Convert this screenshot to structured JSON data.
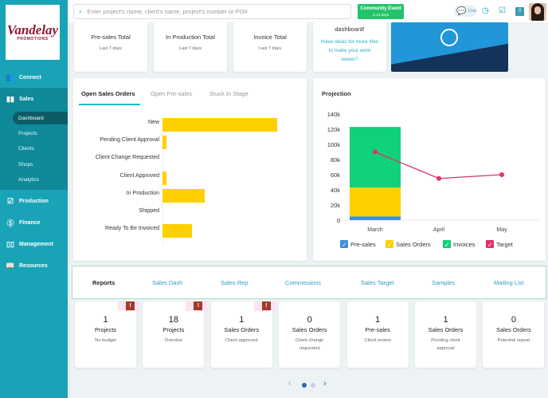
{
  "logo": {
    "line1": "Vandelay",
    "line2": "PROMOTIONS"
  },
  "sidebar": {
    "items": [
      {
        "label": "Connect",
        "icon": "people-icon"
      },
      {
        "label": "Sales",
        "icon": "bar-chart-icon"
      },
      {
        "label": "Production",
        "icon": "checklist-icon"
      },
      {
        "label": "Finance",
        "icon": "dollar-icon"
      },
      {
        "label": "Management",
        "icon": "management-icon"
      },
      {
        "label": "Resources",
        "icon": "book-icon"
      }
    ],
    "sales_sub": [
      "Dashboard",
      "Projects",
      "Clients",
      "Shops",
      "Analytics"
    ],
    "active": "Dashboard"
  },
  "header": {
    "search_placeholder": "Enter project's name, client's name, project's number or PO#",
    "event_title": "Community Event",
    "event_sub": "in 14 days",
    "chat": "Chat",
    "badge": "0"
  },
  "top_cards": [
    {
      "title": "Pre-sales Total",
      "sub": "Last 7 days"
    },
    {
      "title": "In Production Total",
      "sub": "Last 7 days"
    },
    {
      "title": "Invoice Total",
      "sub": "Last 7 days"
    }
  ],
  "tile_card": {
    "title": "dashboard!",
    "link": "Have ideas for more tiles to make your work easier?"
  },
  "tabs": [
    "Open Sales Orders",
    "Open Pre-sales",
    "Stuck In Stage"
  ],
  "accent": "#20bcc4",
  "chart_data": [
    {
      "type": "bar",
      "orientation": "horizontal",
      "categories": [
        "New",
        "Pending Client Approval",
        "Client Change Requested",
        "Client Approved",
        "In Production",
        "Shipped",
        "Ready To Be Invoiced"
      ],
      "values": [
        27,
        1,
        0,
        1,
        10,
        0,
        7
      ],
      "color": "#ffd000"
    },
    {
      "type": "bar",
      "title": "Projection",
      "stacked": true,
      "categories": [
        "March",
        "April",
        "May"
      ],
      "ylim": [
        0,
        140000
      ],
      "yticks": [
        "0",
        "20k",
        "40k",
        "60k",
        "80k",
        "100k",
        "120k",
        "140k"
      ],
      "series": [
        {
          "name": "Pre-sales",
          "values": [
            5000,
            0,
            0
          ],
          "color": "#3f8fd6"
        },
        {
          "name": "Sales Orders",
          "values": [
            38000,
            0,
            0
          ],
          "color": "#ffd000"
        },
        {
          "name": "Invoices",
          "values": [
            80000,
            0,
            0
          ],
          "color": "#0fd17a"
        },
        {
          "name": "Target",
          "type": "line",
          "values": [
            90000,
            55000,
            60000
          ],
          "color": "#e0326d"
        }
      ],
      "legend": "bottom"
    }
  ],
  "reports": [
    "Reports",
    "Sales Dash",
    "Sales Rep",
    "Commissions",
    "Sales Target",
    "Samples",
    "Mailing List"
  ],
  "stat_cards": [
    {
      "n": "1",
      "t": "Projects",
      "s": "No budget",
      "warn": true
    },
    {
      "n": "18",
      "t": "Projects",
      "s": "Overdue",
      "warn": true
    },
    {
      "n": "1",
      "t": "Sales Orders",
      "s": "Client approved",
      "warn": true
    },
    {
      "n": "0",
      "t": "Sales Orders",
      "s": "Client change requested",
      "warn": false
    },
    {
      "n": "1",
      "t": "Pre-sales",
      "s": "Client review",
      "warn": false
    },
    {
      "n": "1",
      "t": "Sales Orders",
      "s": "Pending client approval",
      "warn": false
    },
    {
      "n": "0",
      "t": "Sales Orders",
      "s": "Potential repeat",
      "warn": false
    }
  ],
  "warn_symbol": "!",
  "pager": {
    "pages": 2,
    "current": 1
  }
}
